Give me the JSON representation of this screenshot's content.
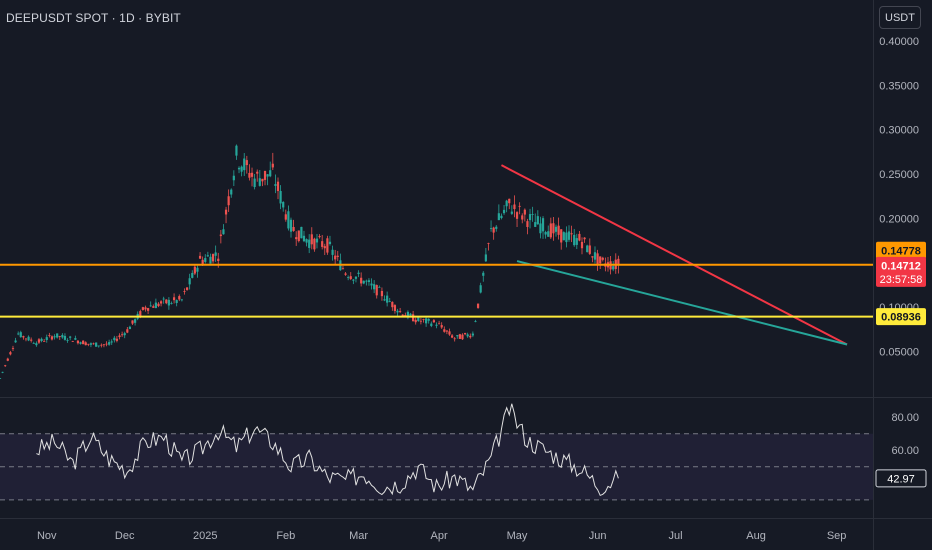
{
  "header": {
    "symbol": "DEEPUSDT SPOT",
    "interval": "1D",
    "exchange": "BYBIT",
    "title": "DEEPUSDT SPOT · 1D · BYBIT",
    "currency_button": "USDT"
  },
  "chart_data": [
    {
      "type": "candlestick",
      "title": "DEEPUSDT SPOT · 1D · BYBIT",
      "x_axis": {
        "tick_labels": [
          "Nov",
          "Dec",
          "2025",
          "Feb",
          "Mar",
          "Apr",
          "May",
          "Jun",
          "Jul",
          "Aug",
          "Sep"
        ],
        "range": [
          "2024-10-14",
          "2025-09-15"
        ]
      },
      "y_axis": {
        "tick_labels": [
          "0.40000",
          "0.35000",
          "0.30000",
          "0.25000",
          "0.20000",
          "0.10000",
          "0.05000"
        ],
        "range": [
          0.0,
          0.41
        ]
      },
      "series": [
        {
          "x": [
            "2024-10-14",
            "2024-10-21",
            "2024-10-28",
            "2024-11-04",
            "2024-11-11",
            "2024-11-18",
            "2024-11-25",
            "2024-12-02",
            "2024-12-09",
            "2024-12-16",
            "2024-12-23",
            "2024-12-30",
            "2025-01-06",
            "2025-01-13",
            "2025-01-20",
            "2025-01-27",
            "2025-02-03",
            "2025-02-10",
            "2025-02-17",
            "2025-02-24",
            "2025-03-03",
            "2025-03-10",
            "2025-03-17",
            "2025-03-24",
            "2025-03-31",
            "2025-04-07",
            "2025-04-14",
            "2025-04-21",
            "2025-04-28",
            "2025-05-05",
            "2025-05-12",
            "2025-05-19",
            "2025-05-26",
            "2025-06-02",
            "2025-06-09"
          ],
          "y": [
            0.02,
            0.07,
            0.06,
            0.068,
            0.064,
            0.058,
            0.058,
            0.074,
            0.1,
            0.105,
            0.108,
            0.153,
            0.16,
            0.27,
            0.245,
            0.25,
            0.19,
            0.175,
            0.17,
            0.14,
            0.13,
            0.115,
            0.095,
            0.085,
            0.082,
            0.065,
            0.07,
            0.185,
            0.215,
            0.2,
            0.19,
            0.18,
            0.175,
            0.15,
            0.14712
          ]
        }
      ],
      "lines": [
        {
          "label": "0.14778",
          "value": 0.14778,
          "color": "#ff9800"
        },
        {
          "label": "0.08936",
          "value": 0.08936,
          "color": "#ffeb3b"
        }
      ],
      "trendlines": [
        {
          "color": "#f23645",
          "from": [
            "2025-04-25",
            0.26
          ],
          "to": [
            "2025-09-05",
            0.058
          ]
        },
        {
          "color": "#26a69a",
          "from": [
            "2025-05-01",
            0.152
          ],
          "to": [
            "2025-09-05",
            0.058
          ]
        }
      ],
      "price_labels": [
        {
          "text": "0.14778",
          "value": 0.14778,
          "bg": "#ff9800",
          "fg": "#131722"
        },
        {
          "text": "0.14712",
          "countdown": "23:57:58",
          "value": 0.14712,
          "bg": "#f23645",
          "fg": "#ffffff"
        },
        {
          "text": "0.08936",
          "value": 0.08936,
          "bg": "#ffeb3b",
          "fg": "#131722"
        }
      ],
      "colors": {
        "up": "#26a69a",
        "down": "#ef5350",
        "background": "#161a25"
      }
    },
    {
      "type": "line",
      "name": "RSI",
      "y_axis": {
        "tick_labels": [
          "80.00",
          "60.00"
        ],
        "range": [
          19,
          91
        ]
      },
      "bands": [
        30,
        50,
        70
      ],
      "last_value_label": "42.97",
      "series": [
        {
          "x": [
            "2024-10-28",
            "2024-11-04",
            "2024-11-11",
            "2024-11-18",
            "2024-11-25",
            "2024-12-02",
            "2024-12-09",
            "2024-12-16",
            "2024-12-23",
            "2024-12-30",
            "2025-01-06",
            "2025-01-13",
            "2025-01-20",
            "2025-01-27",
            "2025-02-03",
            "2025-02-10",
            "2025-02-17",
            "2025-02-24",
            "2025-03-03",
            "2025-03-10",
            "2025-03-17",
            "2025-03-24",
            "2025-03-31",
            "2025-04-07",
            "2025-04-14",
            "2025-04-21",
            "2025-04-28",
            "2025-05-05",
            "2025-05-12",
            "2025-05-19",
            "2025-05-26",
            "2025-06-02",
            "2025-06-09"
          ],
          "y": [
            60,
            65,
            52,
            68,
            55,
            48,
            65,
            68,
            53,
            60,
            72,
            62,
            73,
            65,
            50,
            55,
            44,
            42,
            46,
            38,
            40,
            50,
            38,
            44,
            36,
            55,
            85,
            66,
            60,
            54,
            48,
            38,
            43
          ]
        }
      ],
      "color": "#e0e0e0"
    }
  ]
}
